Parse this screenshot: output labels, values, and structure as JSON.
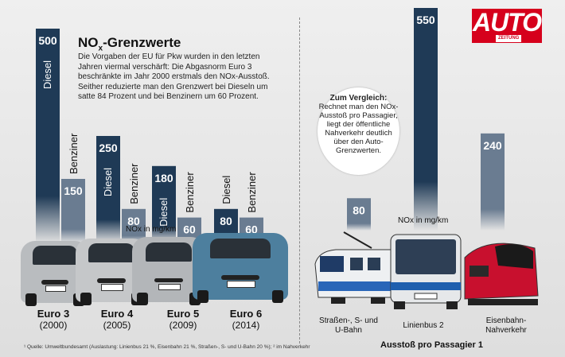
{
  "header": {
    "title_main": "NO",
    "title_sub": "x",
    "title_rest": "-Grenzwerte",
    "description": "Die Vorgaben der EU für Pkw wurden in den letzten Jahren viermal verschärft: Die Abgasnorm Euro 3 beschränkte im Jahr 2000 erstmals den NOx-Ausstoß. Seither reduzierte man den Grenzwert bei Dieseln um satte 84 Prozent und bei Benzinern um 60 Prozent."
  },
  "logo": {
    "text": "AUTO",
    "sub": "ZEITUNG"
  },
  "bubble": {
    "heading": "Zum Vergleich:",
    "text": "Rechnet man den NOx-Ausstoß pro Passagier, liegt der öffentliche Nahverkehr deutlich über den Auto-Grenzwerten."
  },
  "colors": {
    "diesel": "#1f3a56",
    "benzin": "#6a7c91",
    "logo_red": "#d6001c"
  },
  "chart_data": [
    {
      "type": "bar",
      "title": "NOx-Grenzwerte",
      "categories": [
        "Euro 3",
        "Euro 4",
        "Euro 5",
        "Euro 6"
      ],
      "category_years": [
        "(2000)",
        "(2005)",
        "(2009)",
        "(2014)"
      ],
      "unit": "NOx in mg/km",
      "series": [
        {
          "name": "Diesel",
          "values": [
            500,
            250,
            180,
            80
          ]
        },
        {
          "name": "Benziner",
          "values": [
            150,
            80,
            60,
            60
          ]
        }
      ]
    },
    {
      "type": "bar",
      "categories": [
        "Straßen-, S- und U-Bahn",
        "Linienbus 2",
        "Eisenbahn-Nahverkehr"
      ],
      "values": [
        80,
        550,
        240
      ],
      "unit": "NOx in mg/km",
      "xlabel": "Ausstoß pro Passagier 1"
    }
  ],
  "source": "¹ Quelle: Umweltbundesamt (Auslastung: Linienbus 21 %, Eisenbahn 21 %, Straßen-, S- und U-Bahn 20 %); ² im Nahverkehr"
}
